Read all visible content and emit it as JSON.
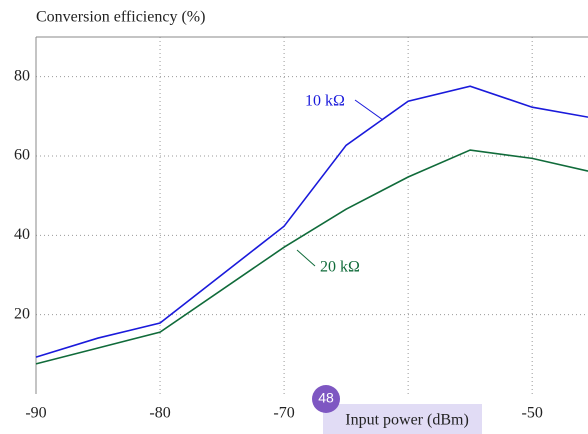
{
  "chart_data": {
    "type": "line",
    "y_label": "Conversion efficiency (%)",
    "x_label": "Input power (dBm)",
    "x": [
      -90,
      -85,
      -80,
      -70,
      -65,
      -60,
      -55,
      -50,
      -45.5
    ],
    "series": [
      {
        "name": "10 kΩ",
        "color": "#1a1adb",
        "values": [
          9.3,
          14.1,
          17.9,
          42.3,
          62.7,
          73.8,
          77.6,
          72.3,
          69.8
        ]
      },
      {
        "name": "20 kΩ",
        "color": "#106b3a",
        "values": [
          7.6,
          11.6,
          15.6,
          37.0,
          46.6,
          54.7,
          61.5,
          59.4,
          56.2
        ]
      }
    ],
    "xlim": [
      -90,
      -45.5
    ],
    "xticks": [
      -90,
      -80,
      -70,
      -60,
      -50
    ],
    "ylim": [
      0,
      90
    ],
    "yticks": [
      20,
      40,
      60,
      80
    ],
    "grid": true,
    "badge": "48"
  }
}
